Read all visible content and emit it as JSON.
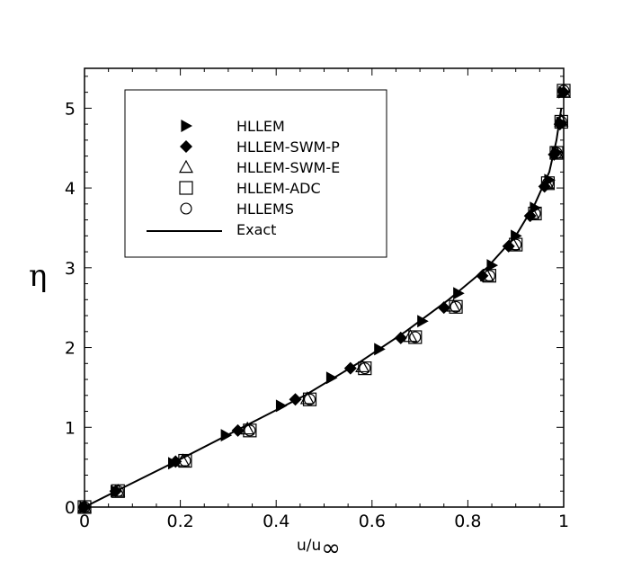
{
  "chart_data": {
    "type": "scatter",
    "title": "",
    "xlabel_base": "u/u",
    "xlabel_sub": "∞",
    "ylabel": "η",
    "xlim": [
      0,
      1
    ],
    "ylim": [
      0,
      5.5
    ],
    "x_ticks": [
      0,
      0.2,
      0.4,
      0.6,
      0.8,
      1
    ],
    "x_tick_labels": [
      "0",
      "0.2",
      "0.4",
      "0.6",
      "0.8",
      "1"
    ],
    "y_ticks": [
      0,
      1,
      2,
      3,
      4,
      5
    ],
    "y_tick_labels": [
      "0",
      "1",
      "2",
      "3",
      "4",
      "5"
    ],
    "grid": false,
    "legend_position": "top-left",
    "series": [
      {
        "name": "HLLEM",
        "marker": "triangle-right-filled",
        "x": [
          0,
          0.065,
          0.185,
          0.295,
          0.41,
          0.515,
          0.615,
          0.705,
          0.78,
          0.85,
          0.9,
          0.94,
          0.97,
          0.985,
          0.995,
          1.0
        ],
        "y": [
          0,
          0.2,
          0.55,
          0.9,
          1.27,
          1.62,
          1.98,
          2.33,
          2.68,
          3.03,
          3.4,
          3.75,
          4.1,
          4.45,
          4.82,
          5.2
        ]
      },
      {
        "name": "HLLEM-SWM-P",
        "marker": "diamond-filled",
        "x": [
          0,
          0.065,
          0.19,
          0.32,
          0.44,
          0.555,
          0.66,
          0.75,
          0.83,
          0.885,
          0.93,
          0.96,
          0.98,
          0.992,
          1.0
        ],
        "y": [
          0,
          0.2,
          0.57,
          0.96,
          1.35,
          1.74,
          2.12,
          2.5,
          2.9,
          3.27,
          3.65,
          4.02,
          4.42,
          4.8,
          5.2
        ]
      },
      {
        "name": "HLLEM-SWM-E",
        "marker": "triangle-up-open",
        "x": [
          0,
          0.07,
          0.205,
          0.34,
          0.465,
          0.58,
          0.68,
          0.77,
          0.84,
          0.895,
          0.935,
          0.965,
          0.985,
          0.995,
          1.0
        ],
        "y": [
          0,
          0.2,
          0.58,
          0.98,
          1.36,
          1.76,
          2.14,
          2.52,
          2.9,
          3.29,
          3.68,
          4.06,
          4.44,
          4.84,
          5.2
        ]
      },
      {
        "name": "HLLEM-ADC",
        "marker": "square-open",
        "x": [
          0,
          0.07,
          0.21,
          0.345,
          0.47,
          0.585,
          0.69,
          0.775,
          0.845,
          0.9,
          0.94,
          0.967,
          0.985,
          0.995,
          1.0
        ],
        "y": [
          0,
          0.2,
          0.58,
          0.96,
          1.35,
          1.74,
          2.13,
          2.51,
          2.9,
          3.29,
          3.68,
          4.06,
          4.44,
          4.83,
          5.22
        ]
      },
      {
        "name": "HLLEMS",
        "marker": "circle-open",
        "x": [
          0,
          0.07,
          0.21,
          0.345,
          0.47,
          0.585,
          0.69,
          0.775,
          0.845,
          0.9,
          0.94,
          0.967,
          0.985,
          0.995,
          1.0
        ],
        "y": [
          0,
          0.2,
          0.58,
          0.96,
          1.35,
          1.74,
          2.13,
          2.51,
          2.9,
          3.29,
          3.68,
          4.06,
          4.44,
          4.83,
          5.22
        ]
      },
      {
        "name": "Exact",
        "marker": "line",
        "x": [
          0,
          0.066,
          0.2,
          0.33,
          0.46,
          0.57,
          0.67,
          0.76,
          0.84,
          0.9,
          0.94,
          0.97,
          0.985,
          0.995
        ],
        "y": [
          0,
          0.2,
          0.6,
          1.0,
          1.4,
          1.8,
          2.2,
          2.6,
          3.0,
          3.4,
          3.8,
          4.2,
          4.6,
          5.0
        ]
      }
    ]
  }
}
